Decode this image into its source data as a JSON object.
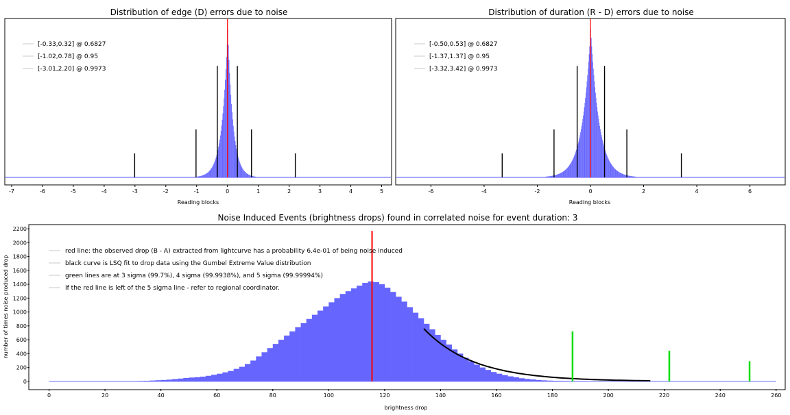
{
  "chart_data": [
    {
      "type": "bar",
      "title": "Distribution of edge (D) errors due to noise",
      "xlabel": "Reading blocks",
      "ylabel": "",
      "xlim": [
        -7.2,
        5.3
      ],
      "xticks": [
        -7,
        -6,
        -5,
        -4,
        -3,
        -2,
        -1,
        0,
        1,
        2,
        3,
        4,
        5
      ],
      "distribution": {
        "center": 0.0,
        "peak": 1.0,
        "width_left": 0.19,
        "width_right": 0.17,
        "shape": "laplace-like"
      },
      "red_line_x": 0,
      "interval_lines": [
        {
          "x": -0.33,
          "height": 0.78
        },
        {
          "x": 0.32,
          "height": 0.78
        },
        {
          "x": -1.02,
          "height": 0.33
        },
        {
          "x": 0.78,
          "height": 0.33
        },
        {
          "x": -3.01,
          "height": 0.16
        },
        {
          "x": 2.2,
          "height": 0.16
        }
      ],
      "legend": [
        "[-0.33,0.32] @ 0.6827",
        "[-1.02,0.78] @ 0.95",
        "[-3.01,2.20] @ 0.9973"
      ],
      "colors": {
        "bars": "#6666ff",
        "red": "#ff0000",
        "lines": "#000000"
      }
    },
    {
      "type": "bar",
      "title": "Distribution of duration (R - D) errors due to noise",
      "xlabel": "Reading blocks",
      "ylabel": "",
      "xlim": [
        -7.3,
        7.3
      ],
      "xticks": [
        -6,
        -4,
        -2,
        0,
        2,
        4,
        6
      ],
      "distribution": {
        "center": 0.0,
        "peak": 1.0,
        "width_left": 0.32,
        "width_right": 0.32,
        "shape": "laplace-like"
      },
      "red_line_x": 0,
      "interval_lines": [
        {
          "x": -0.5,
          "height": 0.78
        },
        {
          "x": 0.53,
          "height": 0.78
        },
        {
          "x": -1.37,
          "height": 0.33
        },
        {
          "x": 1.37,
          "height": 0.33
        },
        {
          "x": -3.32,
          "height": 0.16
        },
        {
          "x": 3.42,
          "height": 0.16
        }
      ],
      "legend": [
        "[-0.50,0.53] @ 0.6827",
        "[-1.37,1.37] @ 0.95",
        "[-3.32,3.42] @ 0.9973"
      ],
      "colors": {
        "bars": "#6666ff",
        "red": "#ff0000",
        "lines": "#000000"
      }
    },
    {
      "type": "bar",
      "title": "Noise Induced Events (brightness drops) found in correlated noise for event duration: 3",
      "xlabel": "brightness drop",
      "ylabel": "number of times noise produced drop",
      "xlim": [
        -7,
        263
      ],
      "ylim": [
        -110,
        2250
      ],
      "xticks": [
        0,
        20,
        40,
        60,
        80,
        100,
        120,
        140,
        160,
        180,
        200,
        220,
        240,
        260
      ],
      "yticks": [
        0,
        200,
        400,
        600,
        800,
        1000,
        1200,
        1400,
        1600,
        1800,
        2000,
        2200
      ],
      "bin_start": 0,
      "bin_width": 2,
      "values": [
        0,
        0,
        0,
        0,
        0,
        0,
        0,
        0,
        0,
        0,
        0,
        0,
        0,
        0,
        0,
        0,
        5,
        8,
        12,
        16,
        20,
        25,
        32,
        40,
        48,
        55,
        60,
        68,
        80,
        95,
        110,
        130,
        150,
        180,
        210,
        250,
        300,
        360,
        420,
        480,
        540,
        600,
        660,
        720,
        780,
        840,
        900,
        960,
        1020,
        1080,
        1140,
        1200,
        1260,
        1300,
        1340,
        1380,
        1420,
        1440,
        1430,
        1400,
        1350,
        1290,
        1220,
        1150,
        1070,
        990,
        910,
        830,
        750,
        670,
        600,
        530,
        460,
        400,
        340,
        290,
        240,
        200,
        165,
        135,
        110,
        90,
        72,
        58,
        45,
        35,
        27,
        20,
        15,
        11,
        8,
        6,
        4,
        3,
        2,
        2,
        1,
        1,
        1,
        0,
        0,
        0,
        0,
        0,
        0,
        0,
        0,
        0,
        0,
        0,
        0,
        0,
        0,
        0
      ],
      "red_line": {
        "x": 115.5,
        "y": 2170
      },
      "green_lines": [
        {
          "x": 187.2,
          "y": 720
        },
        {
          "x": 221.8,
          "y": 440
        },
        {
          "x": 250.5,
          "y": 290
        }
      ],
      "fit_curve": {
        "x_start": 134,
        "x_end": 215,
        "y_start": 760,
        "y_end": 2
      },
      "legend": [
        "red line: the observed drop (B - A) extracted from lightcurve has a probability 6.4e-01 of being noise induced",
        "black curve is LSQ fit to drop data using the Gumbel Extreme Value distribution",
        "green lines are at 3 sigma (99.7%), 4 sigma (99.9938%), and 5 sigma (99.99994%)",
        "If the red line is left of the 5 sigma line - refer to regional coordinator."
      ],
      "colors": {
        "bars": "#6666ff",
        "red": "#ff0000",
        "green": "#00dd00",
        "fit": "#000000"
      }
    }
  ]
}
